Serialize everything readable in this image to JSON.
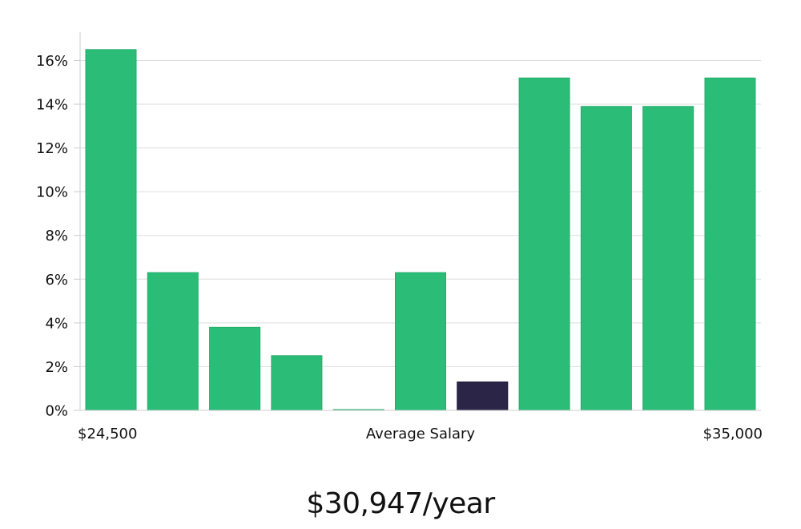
{
  "chart_data": {
    "type": "bar",
    "categories": [
      "b1",
      "b2",
      "b3",
      "b4",
      "b5",
      "b6",
      "b7",
      "b8",
      "b9",
      "b10",
      "b11"
    ],
    "values": [
      16.5,
      6.3,
      3.8,
      2.5,
      0,
      6.3,
      1.3,
      15.2,
      13.9,
      13.9,
      15.2
    ],
    "highlight_index": 6,
    "ylim": [
      0,
      17.3
    ],
    "yticks": [
      0,
      2,
      4,
      6,
      8,
      10,
      12,
      14,
      16
    ],
    "ytick_suffix": "%",
    "grid": true,
    "x_labels": {
      "left": "$24,500",
      "center": "Average Salary",
      "right": "$35,000"
    },
    "title": "",
    "xlabel": "",
    "ylabel": ""
  },
  "colors": {
    "bar": "#2bbd77",
    "bar_stroke": "#22ad6b",
    "highlight": "#2b2548",
    "grid": "#dddddd",
    "axis": "#cccccc"
  },
  "summary": {
    "salary_text": "$30,947/year"
  }
}
